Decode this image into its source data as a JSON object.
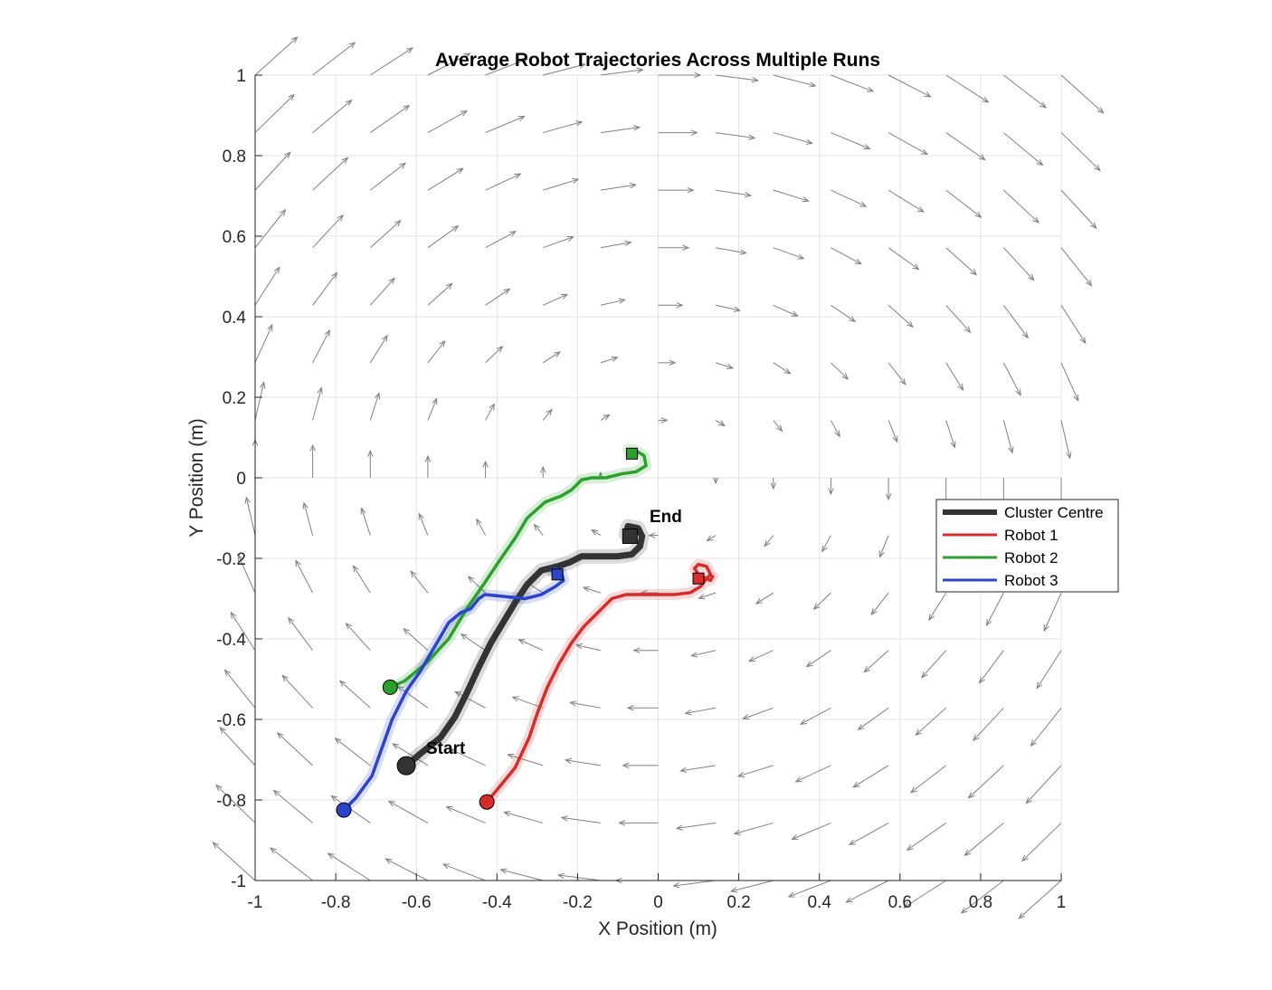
{
  "chart_data": {
    "type": "line",
    "title": "Average Robot Trajectories Across Multiple Runs",
    "xlabel": "X Position (m)",
    "ylabel": "Y Position (m)",
    "xlim": [
      -1,
      1
    ],
    "ylim": [
      -1,
      1
    ],
    "xticks": [
      -1,
      -0.8,
      -0.6,
      -0.4,
      -0.2,
      0,
      0.2,
      0.4,
      0.6,
      0.8,
      1
    ],
    "yticks": [
      -1,
      -0.8,
      -0.6,
      -0.4,
      -0.2,
      0,
      0.2,
      0.4,
      0.6,
      0.8,
      1
    ],
    "xtick_labels": [
      "-1",
      "-0.8",
      "-0.6",
      "-0.4",
      "-0.2",
      "0",
      "0.2",
      "0.4",
      "0.6",
      "0.8",
      "1"
    ],
    "ytick_labels": [
      "-1",
      "-0.8",
      "-0.6",
      "-0.4",
      "-0.2",
      "0",
      "0.2",
      "0.4",
      "0.6",
      "0.8",
      "1"
    ],
    "grid": true,
    "legend_position": "right",
    "vector_field": {
      "description_free": true,
      "x_range": [
        -1,
        1
      ],
      "y_range": [
        -1,
        1
      ],
      "step": 0.143,
      "color": "#808080",
      "model": "vortex with sinusoidal horizontal component"
    },
    "annotations": [
      {
        "text": "Start",
        "x": -0.57,
        "y": -0.67
      },
      {
        "text": "End",
        "x": -0.02,
        "y": -0.09
      }
    ],
    "series": [
      {
        "name": "Cluster Centre",
        "color": "#333333",
        "points": [
          [
            -0.625,
            -0.715
          ],
          [
            -0.59,
            -0.685
          ],
          [
            -0.54,
            -0.645
          ],
          [
            -0.505,
            -0.595
          ],
          [
            -0.475,
            -0.535
          ],
          [
            -0.445,
            -0.47
          ],
          [
            -0.415,
            -0.41
          ],
          [
            -0.385,
            -0.36
          ],
          [
            -0.355,
            -0.31
          ],
          [
            -0.325,
            -0.265
          ],
          [
            -0.29,
            -0.23
          ],
          [
            -0.25,
            -0.22
          ],
          [
            -0.22,
            -0.21
          ],
          [
            -0.19,
            -0.195
          ],
          [
            -0.15,
            -0.195
          ],
          [
            -0.1,
            -0.195
          ],
          [
            -0.065,
            -0.19
          ],
          [
            -0.045,
            -0.17
          ],
          [
            -0.04,
            -0.145
          ],
          [
            -0.05,
            -0.125
          ],
          [
            -0.075,
            -0.12
          ],
          [
            -0.08,
            -0.14
          ]
        ],
        "start": [
          -0.625,
          -0.715
        ],
        "end": [
          -0.07,
          -0.145
        ]
      },
      {
        "name": "Robot 1",
        "color": "#d62c2c",
        "points": [
          [
            -0.425,
            -0.805
          ],
          [
            -0.4,
            -0.775
          ],
          [
            -0.355,
            -0.72
          ],
          [
            -0.32,
            -0.645
          ],
          [
            -0.3,
            -0.585
          ],
          [
            -0.275,
            -0.52
          ],
          [
            -0.245,
            -0.46
          ],
          [
            -0.215,
            -0.41
          ],
          [
            -0.185,
            -0.37
          ],
          [
            -0.16,
            -0.345
          ],
          [
            -0.14,
            -0.325
          ],
          [
            -0.115,
            -0.3
          ],
          [
            -0.08,
            -0.29
          ],
          [
            -0.04,
            -0.29
          ],
          [
            0.0,
            -0.29
          ],
          [
            0.04,
            -0.29
          ],
          [
            0.08,
            -0.285
          ],
          [
            0.105,
            -0.27
          ],
          [
            0.12,
            -0.25
          ],
          [
            0.13,
            -0.24
          ],
          [
            0.12,
            -0.22
          ],
          [
            0.1,
            -0.215
          ],
          [
            0.09,
            -0.225
          ],
          [
            0.1,
            -0.24
          ],
          [
            0.13,
            -0.255
          ],
          [
            0.135,
            -0.245
          ]
        ],
        "start": [
          -0.425,
          -0.805
        ],
        "end": [
          0.1,
          -0.25
        ]
      },
      {
        "name": "Robot 2",
        "color": "#2ca02c",
        "points": [
          [
            -0.665,
            -0.52
          ],
          [
            -0.63,
            -0.505
          ],
          [
            -0.575,
            -0.46
          ],
          [
            -0.52,
            -0.4
          ],
          [
            -0.475,
            -0.325
          ],
          [
            -0.43,
            -0.26
          ],
          [
            -0.39,
            -0.2
          ],
          [
            -0.355,
            -0.15
          ],
          [
            -0.325,
            -0.1
          ],
          [
            -0.28,
            -0.06
          ],
          [
            -0.24,
            -0.045
          ],
          [
            -0.215,
            -0.03
          ],
          [
            -0.19,
            -0.005
          ],
          [
            -0.165,
            0.0
          ],
          [
            -0.13,
            0.0
          ],
          [
            -0.09,
            0.01
          ],
          [
            -0.055,
            0.015
          ],
          [
            -0.03,
            0.03
          ],
          [
            -0.035,
            0.055
          ],
          [
            -0.06,
            0.07
          ],
          [
            -0.075,
            0.07
          ],
          [
            -0.07,
            0.058
          ]
        ],
        "start": [
          -0.665,
          -0.52
        ],
        "end": [
          -0.065,
          0.06
        ]
      },
      {
        "name": "Robot 3",
        "color": "#2b44c9",
        "points": [
          [
            -0.78,
            -0.825
          ],
          [
            -0.75,
            -0.795
          ],
          [
            -0.71,
            -0.74
          ],
          [
            -0.685,
            -0.67
          ],
          [
            -0.66,
            -0.6
          ],
          [
            -0.625,
            -0.53
          ],
          [
            -0.59,
            -0.48
          ],
          [
            -0.555,
            -0.42
          ],
          [
            -0.52,
            -0.36
          ],
          [
            -0.49,
            -0.335
          ],
          [
            -0.465,
            -0.325
          ],
          [
            -0.445,
            -0.3
          ],
          [
            -0.43,
            -0.29
          ],
          [
            -0.38,
            -0.295
          ],
          [
            -0.33,
            -0.3
          ],
          [
            -0.29,
            -0.29
          ],
          [
            -0.255,
            -0.27
          ],
          [
            -0.235,
            -0.255
          ],
          [
            -0.24,
            -0.235
          ],
          [
            -0.255,
            -0.225
          ],
          [
            -0.265,
            -0.23
          ],
          [
            -0.255,
            -0.24
          ]
        ],
        "start": [
          -0.78,
          -0.825
        ],
        "end": [
          -0.25,
          -0.24
        ]
      }
    ]
  }
}
